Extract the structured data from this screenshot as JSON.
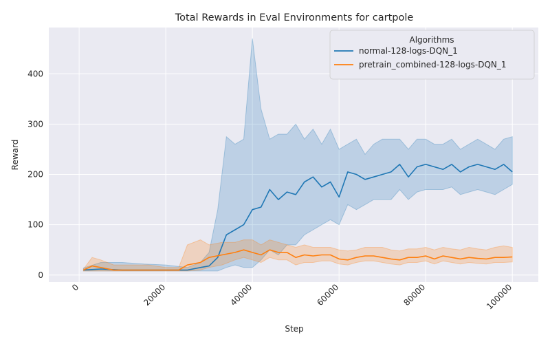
{
  "chart_data": {
    "type": "line",
    "title": "Total Rewards in Eval Environments for cartpole",
    "xlabel": "Step",
    "ylabel": "Reward",
    "xlim": [
      -7000,
      106000
    ],
    "ylim": [
      -14,
      492
    ],
    "xticks": [
      0,
      20000,
      40000,
      60000,
      80000,
      100000
    ],
    "yticks": [
      0,
      100,
      200,
      300,
      400
    ],
    "grid": true,
    "legend": {
      "title": "Algorithms",
      "placement": "top-right"
    },
    "series": [
      {
        "name": "normal-128-logs-DQN_1",
        "color": "#1f77b4",
        "x": [
          1000,
          5000,
          10000,
          15000,
          20000,
          25000,
          28000,
          30000,
          32000,
          34000,
          36000,
          38000,
          40000,
          42000,
          44000,
          46000,
          48000,
          50000,
          52000,
          54000,
          56000,
          58000,
          60000,
          62000,
          64000,
          66000,
          68000,
          70000,
          72000,
          74000,
          76000,
          78000,
          80000,
          82000,
          84000,
          86000,
          88000,
          90000,
          92000,
          94000,
          96000,
          98000,
          100000
        ],
        "y": [
          10,
          12,
          10,
          10,
          10,
          10,
          15,
          18,
          35,
          80,
          90,
          100,
          130,
          135,
          170,
          150,
          165,
          160,
          185,
          195,
          175,
          185,
          155,
          205,
          200,
          190,
          195,
          200,
          205,
          220,
          195,
          215,
          220,
          215,
          210,
          220,
          205,
          215,
          220,
          215,
          210,
          220,
          205
        ],
        "upper": [
          14,
          25,
          25,
          22,
          20,
          15,
          25,
          45,
          130,
          275,
          260,
          270,
          470,
          330,
          270,
          280,
          280,
          300,
          270,
          290,
          260,
          290,
          250,
          260,
          270,
          240,
          260,
          270,
          270,
          270,
          250,
          270,
          270,
          260,
          260,
          270,
          250,
          260,
          270,
          260,
          250,
          270,
          275
        ],
        "lower": [
          8,
          8,
          8,
          8,
          8,
          8,
          8,
          8,
          8,
          15,
          20,
          15,
          15,
          30,
          50,
          40,
          60,
          60,
          80,
          90,
          100,
          110,
          100,
          140,
          130,
          140,
          150,
          150,
          150,
          170,
          150,
          165,
          170,
          170,
          170,
          175,
          160,
          165,
          170,
          165,
          160,
          170,
          180
        ]
      },
      {
        "name": "pretrain_combined-128-logs-DQN_1",
        "color": "#ff7f0e",
        "x": [
          1000,
          3000,
          5000,
          8000,
          12000,
          16000,
          20000,
          23000,
          25000,
          28000,
          30000,
          33000,
          36000,
          38000,
          40000,
          42000,
          44000,
          46000,
          48000,
          50000,
          52000,
          54000,
          56000,
          58000,
          60000,
          62000,
          64000,
          66000,
          68000,
          70000,
          72000,
          74000,
          76000,
          78000,
          80000,
          82000,
          84000,
          86000,
          88000,
          90000,
          92000,
          94000,
          96000,
          98000,
          100000
        ],
        "y": [
          10,
          18,
          15,
          10,
          10,
          10,
          10,
          10,
          20,
          25,
          35,
          40,
          45,
          50,
          45,
          40,
          50,
          45,
          45,
          35,
          40,
          38,
          40,
          40,
          32,
          30,
          35,
          38,
          38,
          35,
          32,
          30,
          35,
          35,
          38,
          32,
          38,
          35,
          32,
          35,
          33,
          32,
          35,
          35,
          36
        ],
        "upper": [
          12,
          35,
          30,
          20,
          20,
          20,
          15,
          15,
          60,
          70,
          60,
          65,
          65,
          70,
          70,
          60,
          70,
          65,
          60,
          55,
          60,
          55,
          55,
          55,
          50,
          48,
          50,
          55,
          55,
          55,
          50,
          48,
          52,
          52,
          55,
          50,
          55,
          52,
          50,
          55,
          52,
          50,
          55,
          58,
          55
        ],
        "lower": [
          8,
          8,
          8,
          8,
          8,
          8,
          8,
          8,
          8,
          10,
          15,
          20,
          30,
          35,
          30,
          25,
          35,
          30,
          30,
          20,
          25,
          25,
          28,
          28,
          22,
          20,
          25,
          28,
          28,
          25,
          22,
          20,
          25,
          25,
          28,
          22,
          28,
          25,
          22,
          25,
          23,
          22,
          25,
          25,
          26
        ]
      }
    ]
  }
}
